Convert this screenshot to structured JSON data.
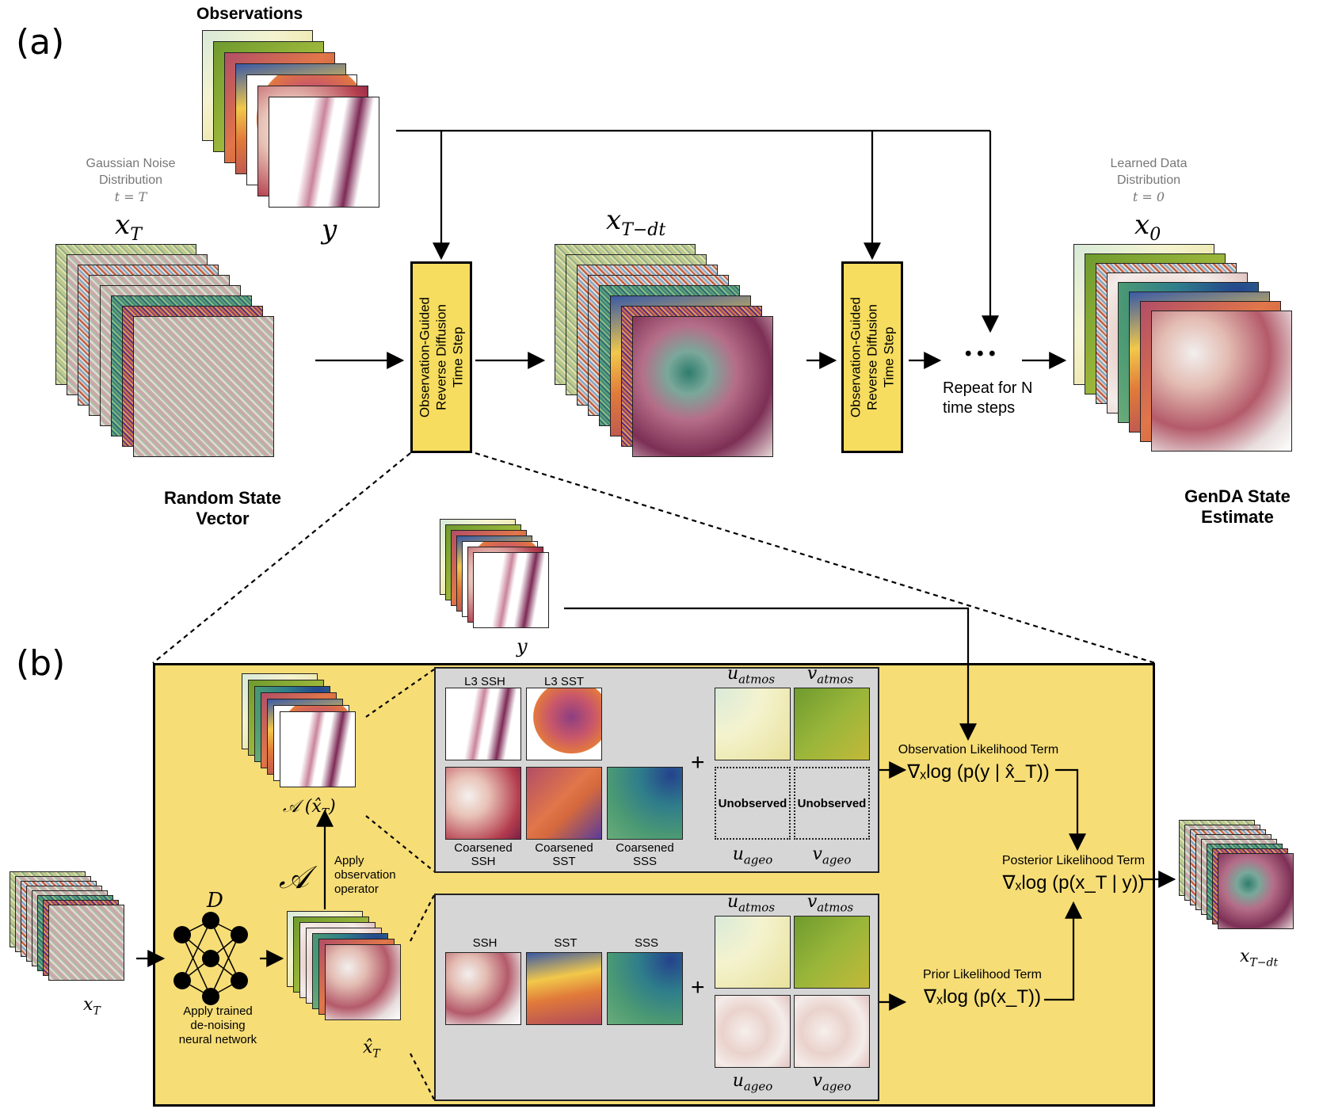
{
  "panel_labels": {
    "a": "(a)",
    "b": "(b)"
  },
  "colors": {
    "accent_yellow": "#f6dd5f",
    "panel_yellow": "#f6dd76",
    "gray_box": "#d6d6d6"
  },
  "panel_a": {
    "observations_title": "Observations",
    "y_label": "y",
    "noise": {
      "line1": "Gaussian Noise",
      "line2": "Distribution",
      "time": "t = T",
      "var": "x",
      "var_sub": "T"
    },
    "random_state": {
      "line1": "Random State",
      "line2": "Vector"
    },
    "step_box_text": {
      "line1": "Observation-Guided",
      "line2": "Reverse Diffusion",
      "line3": "Time Step"
    },
    "mid_var": {
      "var": "x",
      "var_sub": "T−dt"
    },
    "ellipsis": "• • •",
    "repeat": {
      "line1": "Repeat for N",
      "line2": "time steps"
    },
    "learned": {
      "line1": "Learned Data",
      "line2": "Distribution",
      "time": "t = 0",
      "var": "x",
      "var_sub": "0"
    },
    "estimate": {
      "line1": "GenDA State",
      "line2": "Estimate"
    }
  },
  "panel_b": {
    "y_label": "y",
    "xT_label": {
      "var": "x",
      "sub": "T"
    },
    "network_label": "D",
    "network_caption": {
      "line1": "Apply trained",
      "line2": "de-noising",
      "line3": "neural network"
    },
    "xhat_label": {
      "var": "x̂",
      "sub": "T"
    },
    "operator_symbol": "𝒜",
    "operator_caption": {
      "line1": "Apply",
      "line2": "observation",
      "line3": "operator"
    },
    "A_xhat_label": "𝒜 (x̂",
    "A_xhat_sub": "T",
    "A_xhat_close": ")",
    "top_box": {
      "l3_ssh": "L3 SSH",
      "l3_sst": "L3 SST",
      "coarse_ssh": {
        "line1": "Coarsened",
        "line2": "SSH"
      },
      "coarse_sst": {
        "line1": "Coarsened",
        "line2": "SST"
      },
      "coarse_sss": {
        "line1": "Coarsened",
        "line2": "SSS"
      },
      "u_atmos": {
        "var": "u",
        "sub": "atmos"
      },
      "v_atmos": {
        "var": "v",
        "sub": "atmos"
      },
      "u_ageo": {
        "var": "u",
        "sub": "ageo"
      },
      "v_ageo": {
        "var": "v",
        "sub": "ageo"
      },
      "unobserved": "Unobserved",
      "plus": "+"
    },
    "bottom_box": {
      "ssh": "SSH",
      "sst": "SST",
      "sss": "SSS",
      "u_atmos": {
        "var": "u",
        "sub": "atmos"
      },
      "v_atmos": {
        "var": "v",
        "sub": "atmos"
      },
      "u_ageo": {
        "var": "u",
        "sub": "ageo"
      },
      "v_ageo": {
        "var": "v",
        "sub": "ageo"
      },
      "plus": "+"
    },
    "obs_term": {
      "title": "Observation Likelihood Term",
      "formula": "∇ₓlog (p(y | x̂_T))"
    },
    "post_term": {
      "title": "Posterior Likelihood Term",
      "formula": "∇ₓlog (p(x_T | y))"
    },
    "prior_term": {
      "title": "Prior Likelihood Term",
      "formula": "∇ₓlog (p(x_T))"
    },
    "out_label": {
      "var": "x",
      "sub": "T−dt"
    }
  }
}
